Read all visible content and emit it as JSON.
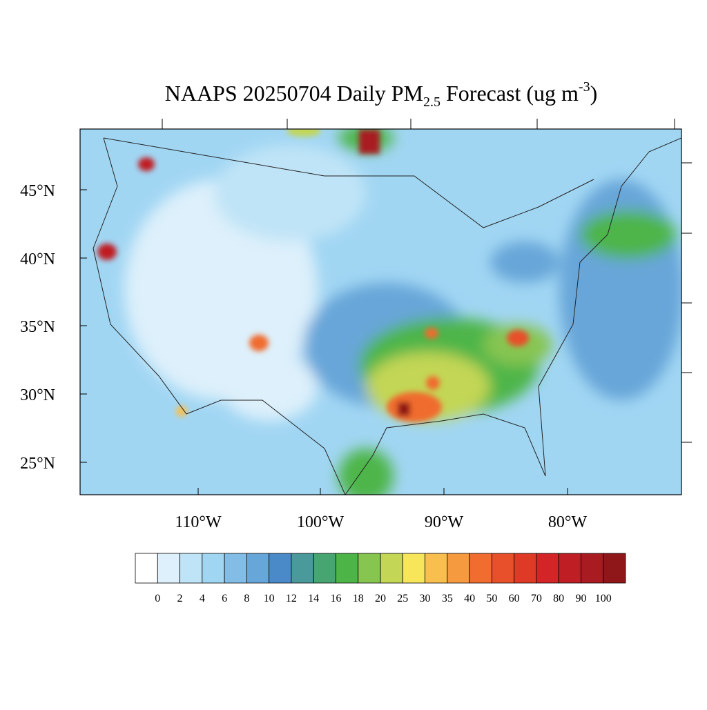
{
  "title": {
    "main": "NAAPS 20250704 Daily PM",
    "subscript": "2.5",
    "middle": " Forecast (ug m",
    "superscript": "-3",
    "end": ")"
  },
  "map": {
    "lat_labels": [
      "45°N",
      "40°N",
      "35°N",
      "30°N",
      "25°N"
    ],
    "lon_labels": [
      "110°W",
      "100°W",
      "90°W",
      "80°W"
    ]
  },
  "colorbar": {
    "labels": [
      0,
      2,
      4,
      6,
      8,
      10,
      12,
      14,
      16,
      18,
      20,
      25,
      30,
      35,
      40,
      50,
      60,
      70,
      80,
      90,
      100
    ],
    "colors": [
      "#ffffff",
      "#ddf0fb",
      "#c0e4f7",
      "#a1d6f3",
      "#83bde6",
      "#67a6d9",
      "#4a8ac8",
      "#4a9a9c",
      "#47a571",
      "#4db548",
      "#87c551",
      "#c3d655",
      "#f7e55a",
      "#f9bf4e",
      "#f59a3f",
      "#f06c2f",
      "#e8502b",
      "#df3a26",
      "#d32428",
      "#bf1e24",
      "#a81b20",
      "#8f1619"
    ]
  }
}
